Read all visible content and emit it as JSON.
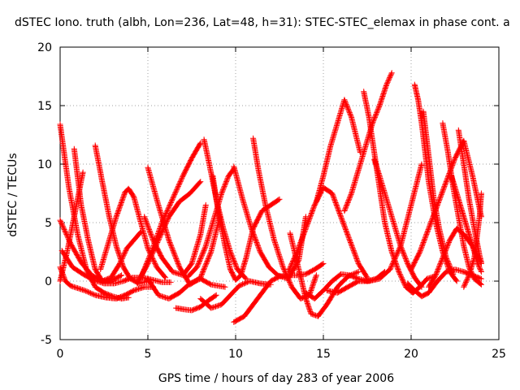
{
  "chart_data": {
    "type": "scatter",
    "title": "dSTEC Iono. truth (albh, Lon=236, Lat=48, h=31): STEC-STEC_elemax in phase cont. a",
    "xlabel": "GPS time / hours of day 283 of year 2006",
    "ylabel": "dSTEC  / TECUs",
    "xlim": [
      0,
      25
    ],
    "ylim": [
      -5,
      20
    ],
    "xticks": [
      "0",
      "5",
      "10",
      "15",
      "20",
      "25"
    ],
    "yticks": [
      "-5",
      "0",
      "5",
      "10",
      "15",
      "20"
    ],
    "grid": true,
    "marker": "+",
    "color": "#ff0000",
    "series": [
      {
        "x": [
          0.0,
          0.5,
          1.0,
          1.5,
          2.0,
          2.5,
          3.0,
          3.5,
          3.9
        ],
        "y": [
          13.4,
          8.0,
          4.0,
          1.0,
          -0.5,
          -1.0,
          -1.3,
          -1.5,
          -1.4
        ]
      },
      {
        "x": [
          0.0,
          0.6,
          1.2,
          1.8,
          2.4,
          3.0,
          3.5
        ],
        "y": [
          5.2,
          3.2,
          1.6,
          0.5,
          0.0,
          0.1,
          0.5
        ]
      },
      {
        "x": [
          0.0,
          0.3,
          0.6,
          1.0,
          1.4,
          2.0,
          2.6,
          3.2,
          3.7,
          4.2,
          4.8,
          5.3
        ],
        "y": [
          1.2,
          0.0,
          -0.4,
          -0.6,
          -0.8,
          -1.2,
          -1.4,
          -1.5,
          -1.2,
          -0.8,
          -0.5,
          -0.5
        ]
      },
      {
        "x": [
          0.1,
          0.7,
          1.3,
          1.9,
          2.5,
          3.1,
          3.6,
          4.1,
          4.7,
          5.3,
          5.8,
          6.3
        ],
        "y": [
          2.6,
          1.2,
          0.6,
          0.1,
          -0.2,
          -0.2,
          0.0,
          0.3,
          0.3,
          0.1,
          -0.1,
          -0.1
        ]
      },
      {
        "x": [
          0.8,
          1.2,
          1.6,
          2.0,
          2.4,
          2.9,
          3.4,
          3.8,
          4.2,
          4.6
        ],
        "y": [
          11.3,
          6.5,
          3.5,
          1.0,
          0.0,
          0.3,
          1.5,
          2.8,
          3.5,
          4.2
        ]
      },
      {
        "x": [
          0.0,
          0.4,
          0.8,
          1.1,
          1.3
        ],
        "y": [
          0.0,
          2.5,
          5.5,
          7.8,
          9.3
        ]
      },
      {
        "x": [
          2.0,
          2.4,
          2.8,
          3.2,
          3.6,
          4.0,
          4.5,
          5.0
        ],
        "y": [
          11.6,
          8.5,
          5.5,
          3.0,
          1.2,
          0.2,
          -0.2,
          0.0
        ]
      },
      {
        "x": [
          2.3,
          2.7,
          3.2,
          3.7,
          3.9,
          4.2,
          4.6,
          5.0,
          5.5,
          6.0
        ],
        "y": [
          1.0,
          3.0,
          5.5,
          7.6,
          7.9,
          7.2,
          5.0,
          2.8,
          1.2,
          0.3
        ]
      },
      {
        "x": [
          4.8,
          5.3,
          5.8,
          6.4,
          7.0,
          7.5,
          8.0,
          8.3
        ],
        "y": [
          5.5,
          3.5,
          2.0,
          0.8,
          0.5,
          1.5,
          4.0,
          6.5
        ]
      },
      {
        "x": [
          4.6,
          5.2,
          5.8,
          6.4,
          7.0,
          7.5,
          8.0
        ],
        "y": [
          0.3,
          2.5,
          5.0,
          7.0,
          9.0,
          10.5,
          11.8
        ]
      },
      {
        "x": [
          4.4,
          5.0,
          5.6,
          6.2,
          6.8,
          7.4,
          8.0
        ],
        "y": [
          -0.2,
          1.5,
          3.5,
          5.5,
          6.8,
          7.5,
          8.5
        ]
      },
      {
        "x": [
          5.0,
          5.6,
          6.2,
          6.8,
          7.4,
          8.0,
          8.6,
          9.1
        ],
        "y": [
          9.7,
          6.5,
          3.5,
          1.2,
          -0.3,
          0.3,
          2.5,
          5.5
        ]
      },
      {
        "x": [
          5.0,
          5.6,
          6.2,
          6.8,
          7.4,
          8.0,
          8.6,
          9.4
        ],
        "y": [
          0.2,
          -1.2,
          -1.5,
          -1.0,
          -0.2,
          0.2,
          -0.3,
          -0.5
        ]
      },
      {
        "x": [
          6.6,
          7.0,
          7.5,
          8.0,
          8.5,
          8.9
        ],
        "y": [
          -2.3,
          -2.4,
          -2.5,
          -2.2,
          -1.6,
          -1.2
        ]
      },
      {
        "x": [
          7.3,
          7.8,
          8.3,
          8.8,
          9.2,
          9.6,
          9.9
        ],
        "y": [
          0.4,
          1.2,
          3.0,
          5.5,
          7.5,
          9.0,
          9.6
        ]
      },
      {
        "x": [
          8.2,
          8.5,
          8.9,
          9.3,
          9.7,
          10.1,
          10.6
        ],
        "y": [
          12.1,
          10.0,
          7.0,
          4.5,
          2.5,
          1.0,
          0.2
        ]
      },
      {
        "x": [
          8.7,
          9.0,
          9.4,
          9.7,
          10.0,
          10.3,
          10.6,
          11.0,
          11.5,
          12.0,
          12.5
        ],
        "y": [
          9.0,
          6.0,
          3.0,
          1.0,
          0.1,
          0.5,
          2.0,
          4.5,
          6.0,
          6.5,
          7.0
        ]
      },
      {
        "x": [
          8.0,
          8.6,
          9.2,
          9.7,
          10.2,
          10.8,
          11.4,
          12.0
        ],
        "y": [
          -1.5,
          -2.3,
          -2.0,
          -1.2,
          -0.4,
          0.0,
          -0.2,
          -0.3
        ]
      },
      {
        "x": [
          9.9,
          10.4,
          10.9,
          11.4,
          11.9,
          12.4,
          13.0,
          13.6,
          14.0
        ],
        "y": [
          9.8,
          7.0,
          4.5,
          2.5,
          1.2,
          0.5,
          0.2,
          1.8,
          5.5
        ]
      },
      {
        "x": [
          9.9,
          10.5,
          11.0,
          11.5,
          12.0,
          12.5,
          13.0,
          13.5,
          14.0,
          14.5,
          15.0
        ],
        "y": [
          -3.5,
          -3.0,
          -2.0,
          -1.0,
          0.0,
          0.4,
          0.5,
          0.5,
          0.6,
          1.0,
          1.5
        ]
      },
      {
        "x": [
          11.0,
          11.3,
          11.7,
          12.2,
          12.7,
          13.2,
          13.7,
          14.2,
          14.6
        ],
        "y": [
          12.2,
          9.5,
          6.5,
          3.5,
          1.2,
          -0.5,
          -1.5,
          -1.2,
          0.5
        ]
      },
      {
        "x": [
          13.1,
          13.6,
          14.0,
          14.3,
          14.7,
          15.2,
          15.8,
          16.4,
          17.0
        ],
        "y": [
          4.1,
          1.0,
          -1.5,
          -2.8,
          -3.0,
          -2.0,
          -0.5,
          0.4,
          0.8
        ]
      },
      {
        "x": [
          13.0,
          13.5,
          14.0,
          14.5,
          15.0,
          15.5,
          16.0,
          16.5,
          17.0,
          17.5
        ],
        "y": [
          0.8,
          2.5,
          4.5,
          6.5,
          8.0,
          7.5,
          5.5,
          3.5,
          1.5,
          0.3
        ]
      },
      {
        "x": [
          14.6,
          15.0,
          15.4,
          15.8,
          16.2,
          16.6,
          17.1
        ],
        "y": [
          6.8,
          9.0,
          11.5,
          13.5,
          15.5,
          14.0,
          11.0
        ]
      },
      {
        "x": [
          14.0,
          14.5,
          15.0,
          15.5,
          16.0,
          16.5,
          17.0,
          17.5,
          18.0,
          18.5
        ],
        "y": [
          -1.0,
          -1.5,
          -0.8,
          0.0,
          0.6,
          0.5,
          0.2,
          0.0,
          0.2,
          0.8
        ]
      },
      {
        "x": [
          15.2,
          15.8,
          16.4,
          17.0,
          17.6,
          18.2,
          18.8,
          19.4,
          20.0,
          20.6
        ],
        "y": [
          -0.8,
          -1.0,
          -0.5,
          0.0,
          0.0,
          0.2,
          1.0,
          3.0,
          6.5,
          10.0
        ]
      },
      {
        "x": [
          16.2,
          16.6,
          17.0,
          17.4,
          17.8,
          18.2,
          18.6,
          18.9
        ],
        "y": [
          6.0,
          7.5,
          9.5,
          11.5,
          13.5,
          15.0,
          16.8,
          17.8
        ]
      },
      {
        "x": [
          17.3,
          17.6,
          17.9,
          18.2,
          18.5,
          18.9,
          19.3,
          19.7,
          20.1,
          20.5,
          20.9,
          21.3
        ],
        "y": [
          16.2,
          14.0,
          11.0,
          8.0,
          5.0,
          2.5,
          0.8,
          -0.5,
          -1.0,
          -0.5,
          0.2,
          0.4
        ]
      },
      {
        "x": [
          17.9,
          18.2,
          18.6,
          19.0,
          19.4,
          19.8,
          20.2,
          20.6
        ],
        "y": [
          10.4,
          9.0,
          7.0,
          5.0,
          3.0,
          1.5,
          0.3,
          -0.5
        ]
      },
      {
        "x": [
          20.2,
          20.4,
          20.6,
          20.8,
          21.0,
          21.4,
          21.8,
          22.2,
          22.6
        ],
        "y": [
          16.8,
          15.5,
          13.5,
          11.0,
          8.5,
          5.0,
          2.5,
          0.8,
          0.0
        ]
      },
      {
        "x": [
          20.7,
          20.9,
          21.1,
          21.3,
          21.6,
          22.0,
          22.4
        ],
        "y": [
          14.5,
          12.0,
          9.5,
          7.0,
          4.5,
          2.0,
          0.6
        ]
      },
      {
        "x": [
          19.8,
          20.2,
          20.6,
          21.0,
          21.5,
          22.0,
          22.5,
          23.0,
          23.5,
          24.0
        ],
        "y": [
          -0.2,
          -0.8,
          -1.3,
          -1.0,
          0.0,
          0.8,
          1.0,
          0.8,
          0.5,
          0.2
        ]
      },
      {
        "x": [
          20.0,
          20.5,
          21.0,
          21.5,
          22.0,
          22.5,
          23.0,
          23.5,
          24.0
        ],
        "y": [
          1.0,
          2.5,
          4.5,
          6.5,
          8.5,
          10.5,
          12.0,
          9.0,
          5.5
        ]
      },
      {
        "x": [
          21.8,
          22.1,
          22.4,
          22.7,
          23.0,
          23.3,
          23.6,
          24.0
        ],
        "y": [
          13.5,
          11.0,
          8.0,
          5.5,
          3.0,
          1.2,
          0.2,
          -0.3
        ]
      },
      {
        "x": [
          22.7,
          23.0,
          23.3,
          23.6,
          23.9,
          24.0
        ],
        "y": [
          12.9,
          10.0,
          7.0,
          4.5,
          2.2,
          1.6
        ]
      },
      {
        "x": [
          21.0,
          21.4,
          21.8,
          22.2,
          22.6,
          23.0,
          23.5,
          24.0
        ],
        "y": [
          -0.5,
          0.5,
          2.0,
          3.5,
          4.5,
          4.0,
          3.0,
          1.5
        ]
      },
      {
        "x": [
          22.3,
          22.6,
          22.9,
          23.2,
          23.5,
          23.8,
          24.0
        ],
        "y": [
          9.0,
          7.5,
          6.0,
          4.5,
          3.0,
          1.5,
          0.8
        ]
      },
      {
        "x": [
          23.0,
          23.3,
          23.6,
          23.9,
          24.0
        ],
        "y": [
          -0.5,
          0.5,
          2.0,
          5.5,
          7.5
        ]
      }
    ]
  }
}
